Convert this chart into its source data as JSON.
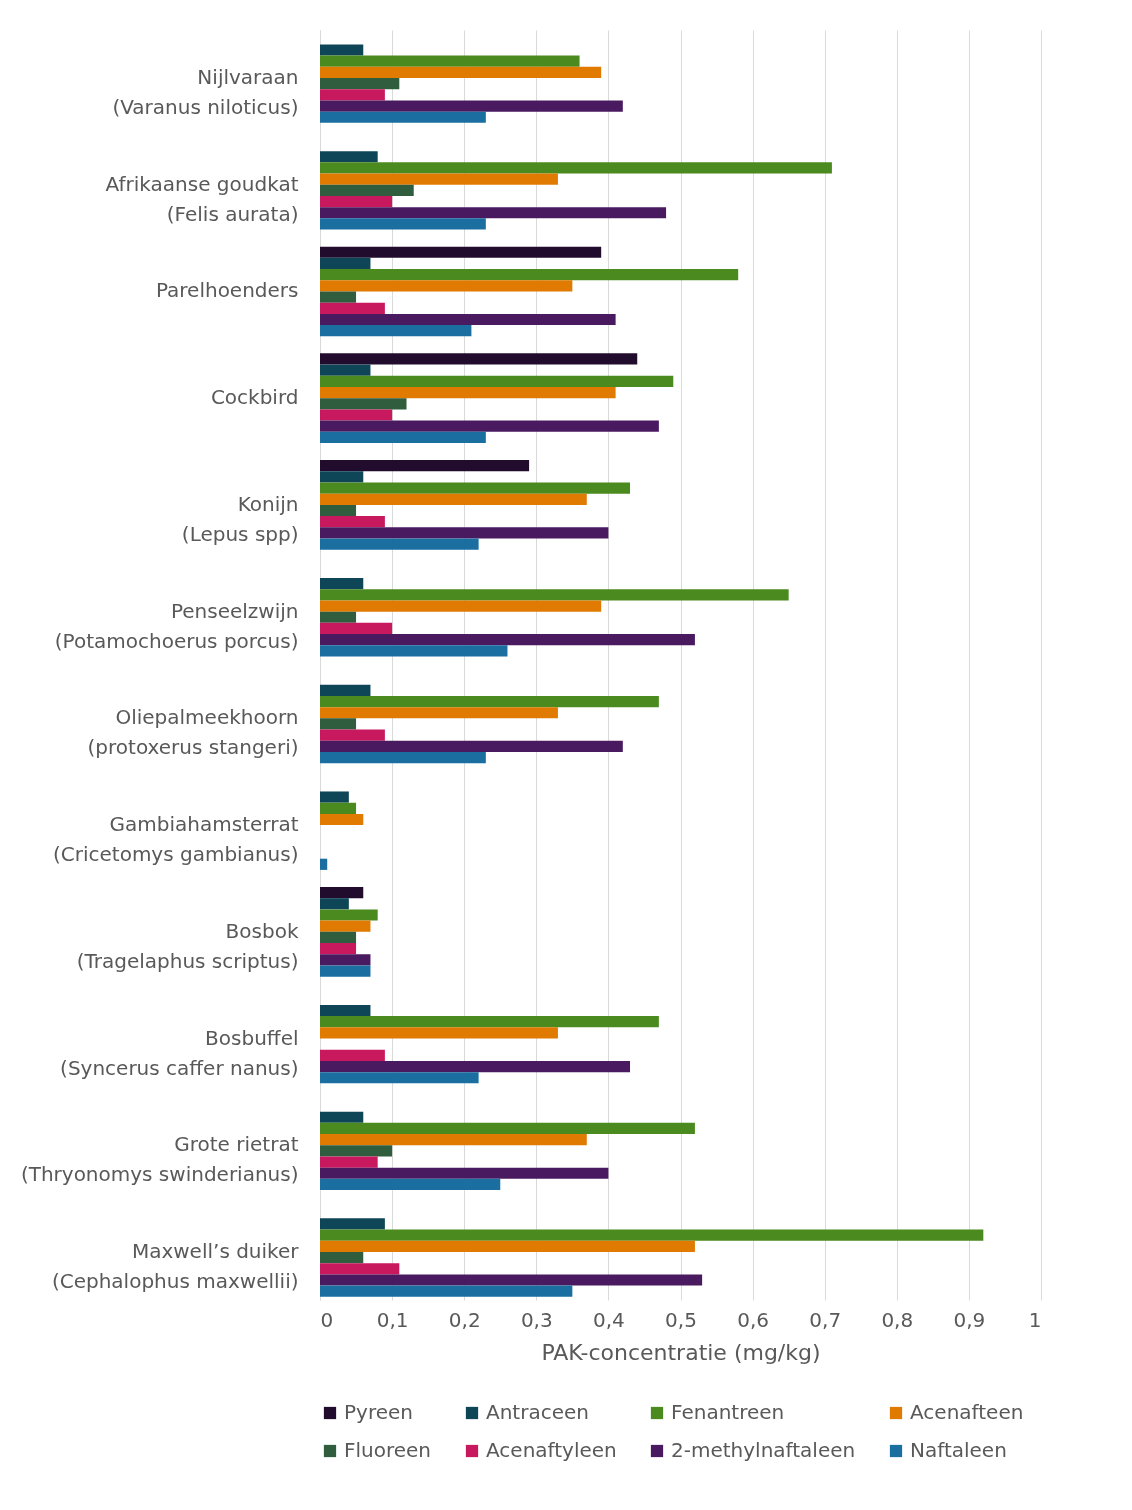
{
  "chart_data": {
    "type": "bar",
    "orientation": "horizontal",
    "xlabel": "PAK-concentratie (mg/kg)",
    "categories": [
      "Nijlvaraan\n(Varanus niloticus)",
      "Afrikaanse goudkat\n(Felis aurata)",
      "Parelhoenders",
      "Cockbird",
      "Konijn\n(Lepus spp)",
      "Penseelzwijn\n(Potamochoerus porcus)",
      "Oliepalmeekhoorn\n(protoxerus stangeri)",
      "Gambiahamsterrat\n(Cricetomys gambianus)",
      "Bosbok\n(Tragelaphus scriptus)",
      "Bosbuffel\n(Syncerus caffer nanus)",
      "Grote rietrat\n(Thryonomys swinderianus)",
      "Maxwell’s duiker\n(Cephalophus maxwellii)"
    ],
    "series": [
      {
        "name": "Pyreen",
        "color": "#220c2e",
        "values": [
          null,
          null,
          0.39,
          0.44,
          0.29,
          null,
          null,
          null,
          0.06,
          null,
          null,
          null
        ]
      },
      {
        "name": "Antraceen",
        "color": "#0e4658",
        "values": [
          0.06,
          0.08,
          0.07,
          0.07,
          0.06,
          0.06,
          0.07,
          0.04,
          0.04,
          0.07,
          0.06,
          0.09
        ]
      },
      {
        "name": "Fenantreen",
        "color": "#4a8a1e",
        "values": [
          0.36,
          0.71,
          0.58,
          0.49,
          0.43,
          0.65,
          0.47,
          0.05,
          0.08,
          0.47,
          0.52,
          0.92
        ]
      },
      {
        "name": "Acenafteen",
        "color": "#e07a00",
        "values": [
          0.39,
          0.33,
          0.35,
          0.41,
          0.37,
          0.39,
          0.33,
          0.06,
          0.07,
          0.33,
          0.37,
          0.52
        ]
      },
      {
        "name": "Fluoreen",
        "color": "#2f5d3e",
        "values": [
          0.11,
          0.13,
          0.05,
          0.12,
          0.05,
          0.05,
          0.05,
          null,
          0.05,
          null,
          0.1,
          0.06
        ]
      },
      {
        "name": "Acenaftyleen",
        "color": "#c8185e",
        "values": [
          0.09,
          0.1,
          0.09,
          0.1,
          0.09,
          0.1,
          0.09,
          null,
          0.05,
          0.09,
          0.08,
          0.11
        ]
      },
      {
        "name": "2-methylnaftaleen",
        "color": "#4a1a60",
        "values": [
          0.42,
          0.48,
          0.41,
          0.47,
          0.4,
          0.52,
          0.42,
          null,
          0.07,
          0.43,
          0.4,
          0.53
        ]
      },
      {
        "name": "Naftaleen",
        "color": "#1a6ea0",
        "values": [
          0.23,
          0.23,
          0.21,
          0.23,
          0.22,
          0.26,
          0.23,
          0.01,
          0.07,
          0.22,
          0.25,
          0.35
        ]
      }
    ],
    "xlim": [
      0,
      1
    ],
    "xticks": [
      0,
      {
        "value": 0.1,
        "label": "0,1"
      },
      {
        "value": 0.2,
        "label": "0,2"
      },
      {
        "value": 0.3,
        "label": "0,3"
      },
      {
        "value": 0.4,
        "label": "0,4"
      },
      {
        "value": 0.5,
        "label": "0,5"
      },
      {
        "value": 0.6,
        "label": "0,6"
      },
      {
        "value": 0.7,
        "label": "0,7"
      },
      {
        "value": 0.8,
        "label": "0,8"
      },
      {
        "value": 0.9,
        "label": "0,9"
      },
      1
    ],
    "grid": "x",
    "legend": "bottom"
  }
}
